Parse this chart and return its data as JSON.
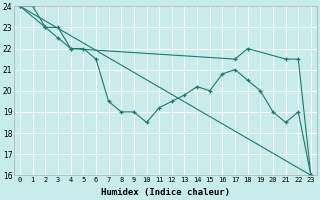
{
  "xlabel": "Humidex (Indice chaleur)",
  "ylabel": "",
  "bg_color": "#c8ecec",
  "grid_color": "#ffffff",
  "line_color": "#1a7a6e",
  "xlim": [
    -0.5,
    23.5
  ],
  "ylim": [
    16,
    24
  ],
  "yticks": [
    16,
    17,
    18,
    19,
    20,
    21,
    22,
    23,
    24
  ],
  "xticks": [
    0,
    1,
    2,
    3,
    4,
    5,
    6,
    7,
    8,
    9,
    10,
    11,
    12,
    13,
    14,
    15,
    16,
    17,
    18,
    19,
    20,
    21,
    22,
    23
  ],
  "series": [
    {
      "x": [
        0,
        23
      ],
      "y": [
        24,
        16
      ]
    },
    {
      "x": [
        0,
        1,
        2,
        3,
        4,
        17,
        18,
        21,
        22,
        23
      ],
      "y": [
        24,
        24,
        23,
        23,
        22,
        21.5,
        22,
        21.5,
        21.5,
        16
      ]
    },
    {
      "x": [
        0,
        2,
        3,
        4,
        5,
        6,
        7,
        8,
        9,
        10,
        11,
        12,
        13,
        14,
        15,
        16,
        17,
        18,
        19,
        20,
        21,
        22,
        23
      ],
      "y": [
        24,
        23,
        22.5,
        22,
        22,
        21.5,
        19.5,
        19,
        19,
        18.5,
        19.2,
        19.5,
        19.8,
        20.2,
        20,
        20.8,
        21,
        20.5,
        20,
        19,
        18.5,
        19,
        16
      ]
    }
  ]
}
